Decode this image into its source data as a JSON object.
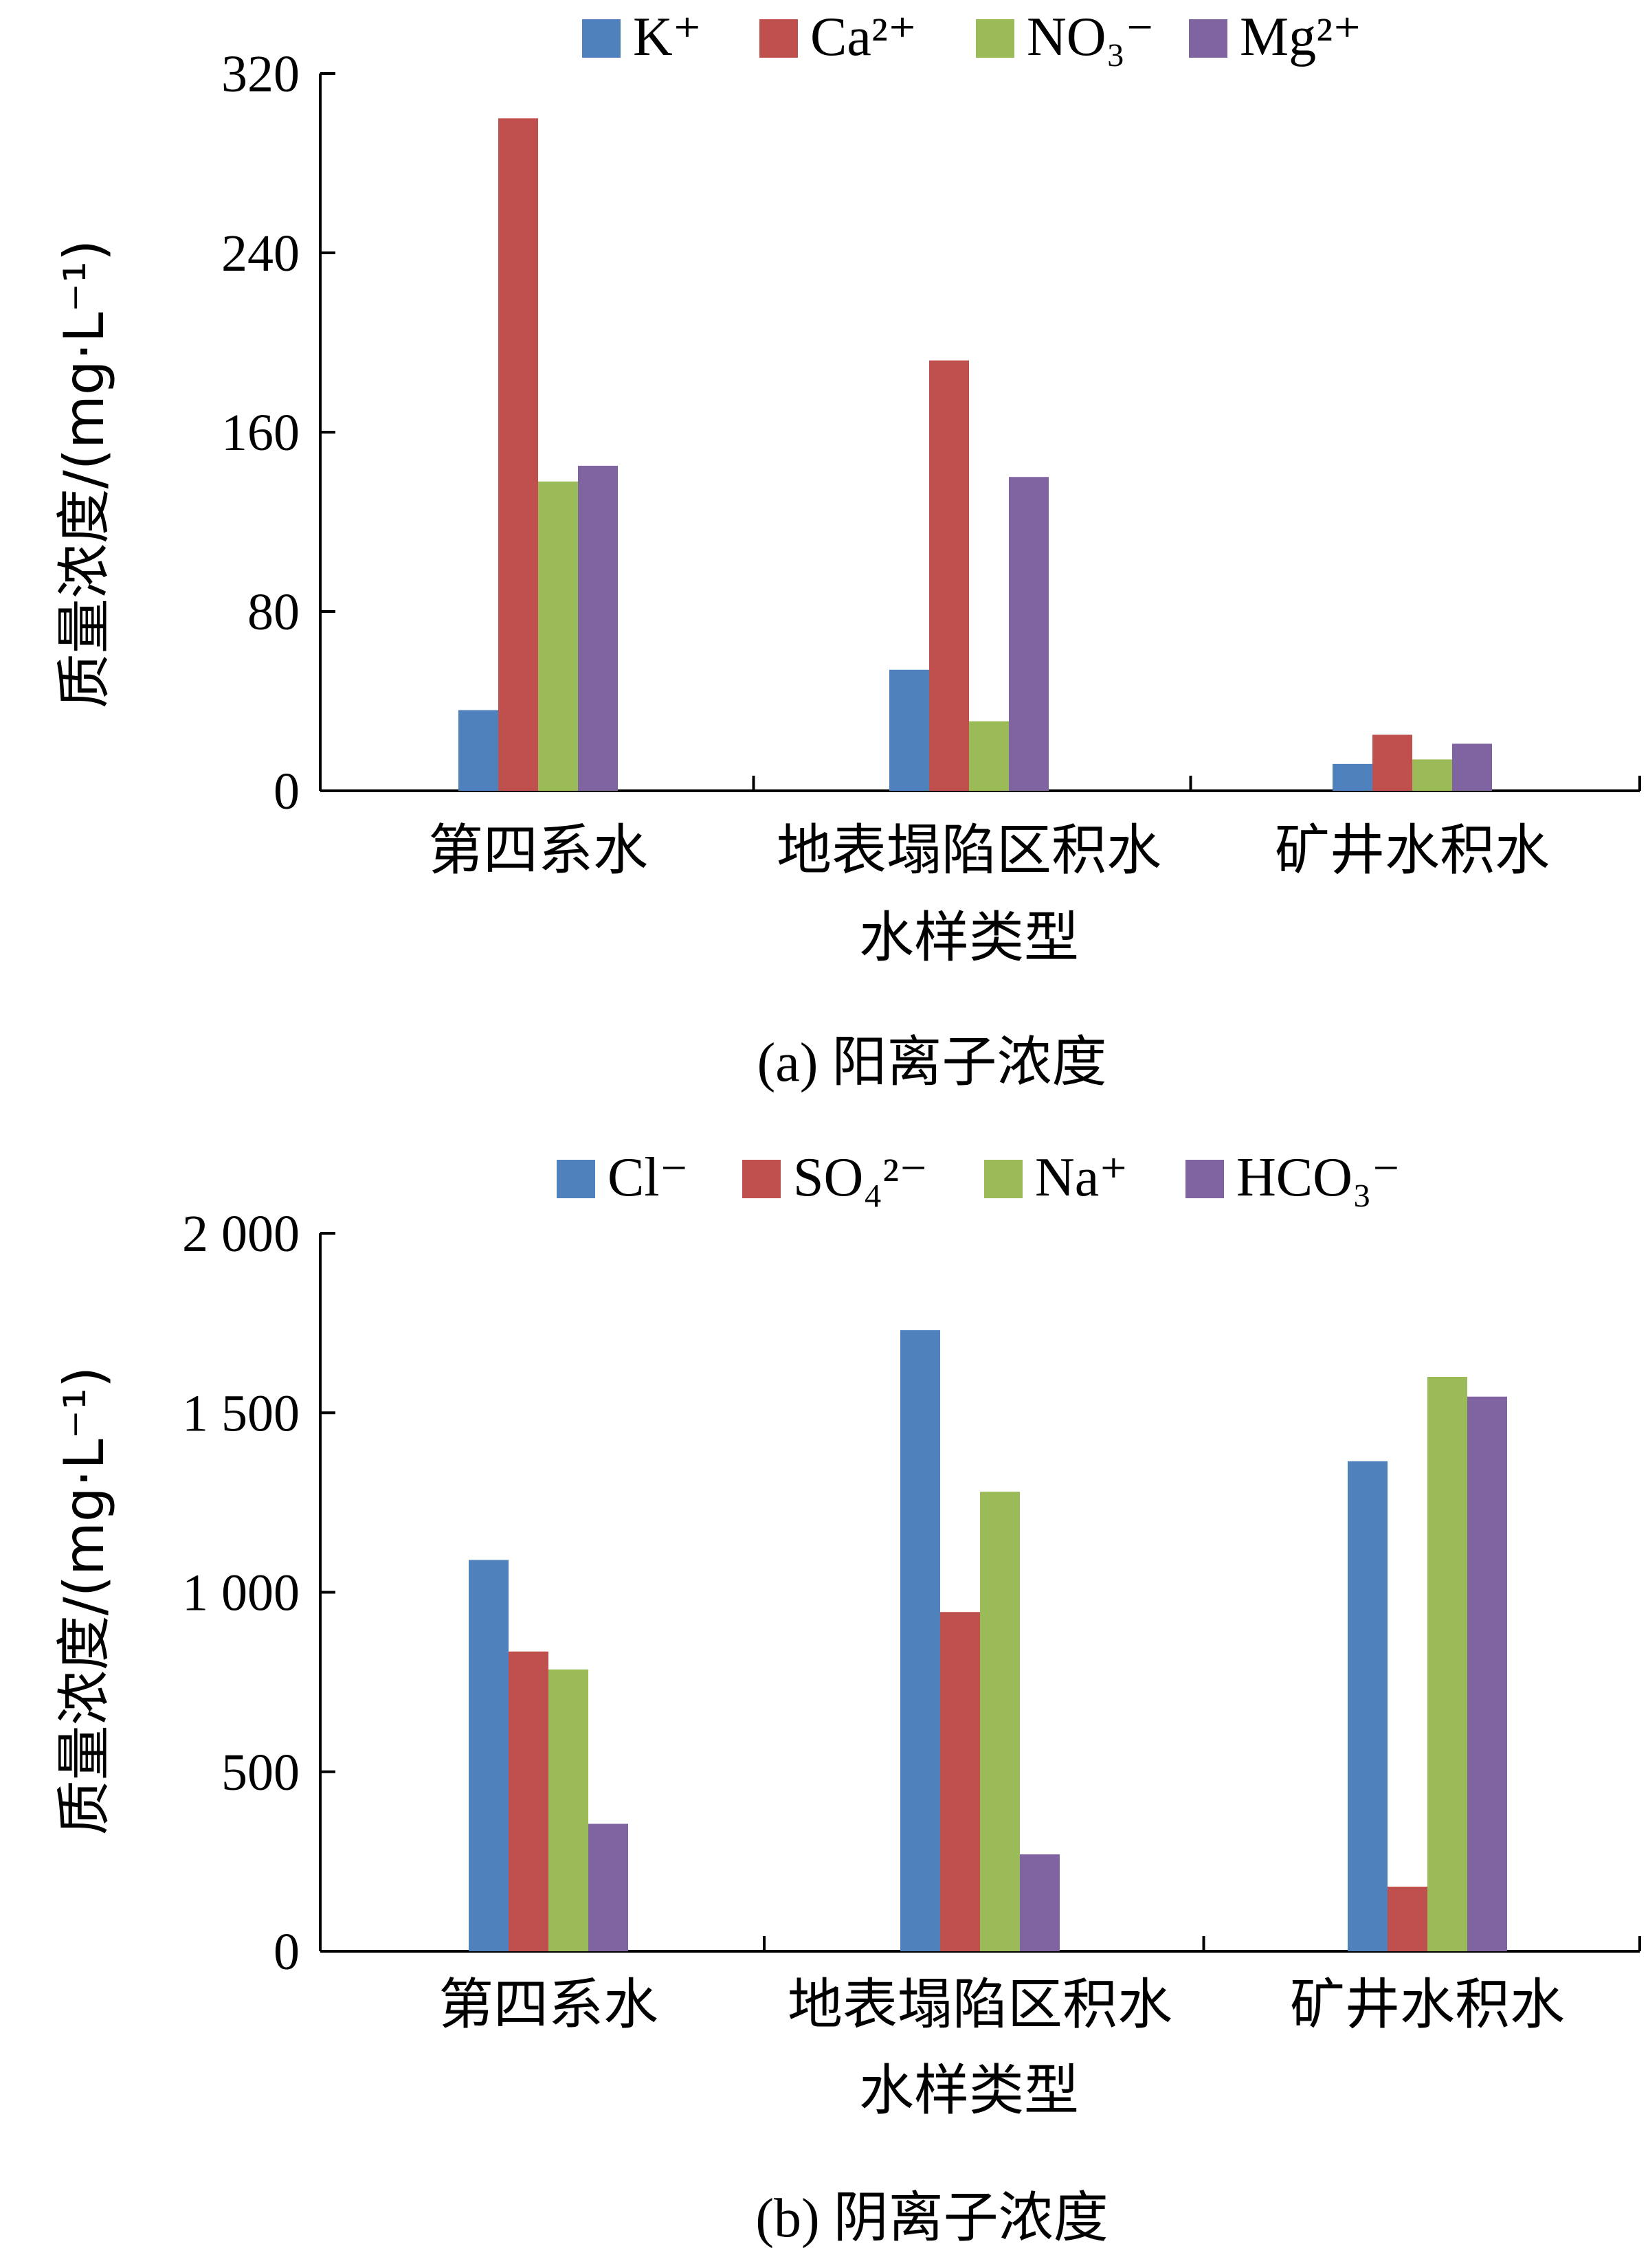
{
  "chart_data": [
    {
      "type": "bar",
      "caption": "(a) 阳离子浓度",
      "xlabel": "水样类型",
      "ylabel": "质量浓度/(mg·L⁻¹)",
      "categories": [
        "第四系水",
        "地表塌陷区积水",
        "矿井水积水"
      ],
      "ylim": [
        0,
        320
      ],
      "yticks": [
        0,
        80,
        160,
        240,
        320
      ],
      "ytick_labels": [
        "0",
        "80",
        "160",
        "240",
        "320"
      ],
      "legend_position": "top",
      "series": [
        {
          "name": "K⁺",
          "color": "#4F81BD",
          "values": [
            36,
            54,
            12
          ]
        },
        {
          "name": "Ca²⁺",
          "color": "#C0504D",
          "values": [
            300,
            192,
            25
          ]
        },
        {
          "name": "NO₃⁻",
          "color": "#9BBB59",
          "values": [
            138,
            31,
            14
          ]
        },
        {
          "name": "Mg²⁺",
          "color": "#8064A2",
          "values": [
            145,
            140,
            21
          ]
        }
      ]
    },
    {
      "type": "bar",
      "caption": "(b) 阴离子浓度",
      "xlabel": "水样类型",
      "ylabel": "质量浓度/(mg·L⁻¹)",
      "categories": [
        "第四系水",
        "地表塌陷区积水",
        "矿井水积水"
      ],
      "ylim": [
        0,
        2000
      ],
      "yticks": [
        0,
        500,
        1000,
        1500,
        2000
      ],
      "ytick_labels": [
        "0",
        "500",
        "1 000",
        "1 500",
        "2 000"
      ],
      "legend_position": "top",
      "series": [
        {
          "name": "Cl⁻",
          "color": "#4F81BD",
          "values": [
            1090,
            1730,
            1365
          ]
        },
        {
          "name": "SO₄²⁻",
          "color": "#C0504D",
          "values": [
            835,
            945,
            180
          ]
        },
        {
          "name": "Na⁺",
          "color": "#9BBB59",
          "values": [
            785,
            1280,
            1600
          ]
        },
        {
          "name": "HCO₃⁻",
          "color": "#8064A2",
          "values": [
            355,
            270,
            1545
          ]
        }
      ]
    }
  ]
}
